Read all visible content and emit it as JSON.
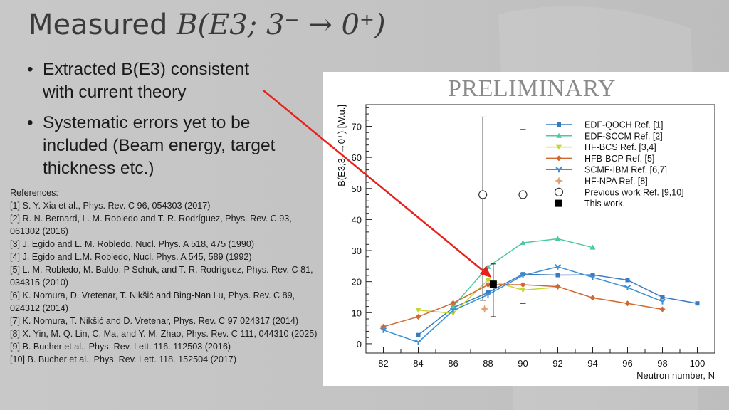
{
  "slide": {
    "title_prefix": "Measured ",
    "title_math": "B(E3; 3⁻ → 0⁺)",
    "bullets": [
      "Extracted B(E3) consistent with current theory",
      "Systematic errors yet to be included (Beam energy, target thickness etc.)"
    ],
    "bullet_glyph": "•",
    "references_heading": "References:",
    "references": [
      "[1]  S. Y. Xia et al., Phys. Rev. C 96, 054303 (2017)",
      "[2] R. N. Bernard, L. M. Robledo and T. R. Rodríguez, Phys. Rev. C 93, 061302 (2016)",
      "[3] J. Egido and L. M. Robledo, Nucl. Phys. A 518, 475 (1990)",
      "[4] J. Egido and L.M. Robledo, Nucl. Phys. A 545, 589 (1992)",
      "[5] L. M. Robledo, M. Baldo, P Schuk, and T. R. Rodríguez,  Phys. Rev. C 81, 034315 (2010)",
      "[6] K. Nomura, D. Vretenar, T. Nikšić and Bing-Nan Lu, Phys. Rev. C 89, 024312 (2014)",
      "[7] K. Nomura, T. Nikšić  and D. Vretenar, Phys. Rev. C 97 024317 (2014)",
      "[8] X. Yin, M. Q. Lin, C. Ma, and Y. M. Zhao, Phys. Rev. C 111, 044310 (2025)",
      "[9] B. Bucher et al., Phys. Rev. Lett. 116. 112503 (2016)",
      "[10] B. Bucher et al., Phys. Rev. Lett. 118. 152504 (2017)"
    ],
    "arrow_color": "#e8221a"
  },
  "chart_data": {
    "type": "line",
    "watermark": "PRELIMINARY",
    "xlabel": "Neutron number, N",
    "ylabel": "B(E3;3⁻→0⁺) [W.u.]",
    "xlim": [
      81,
      101
    ],
    "ylim": [
      -3,
      77
    ],
    "xticks": [
      82,
      84,
      86,
      88,
      90,
      92,
      94,
      96,
      98,
      100
    ],
    "yticks": [
      0,
      10,
      20,
      30,
      40,
      50,
      60,
      70
    ],
    "legend_position": "top-right",
    "series": [
      {
        "name": "EDF-QOCH Ref. [1]",
        "color": "#3a7abf",
        "marker": "square",
        "line": true,
        "x": [
          84,
          86,
          88,
          90,
          92,
          94,
          96,
          98,
          100
        ],
        "y": [
          2.8,
          11.6,
          16.5,
          22.4,
          22.1,
          22.2,
          20.5,
          15.0,
          13.0
        ]
      },
      {
        "name": "EDF-SCCM Ref. [2]",
        "color": "#4cc9a4",
        "marker": "triangle",
        "line": true,
        "x": [
          86,
          88,
          90,
          92,
          94
        ],
        "y": [
          12.0,
          24.8,
          32.5,
          33.8,
          31.0
        ]
      },
      {
        "name": "HF-BCS Ref. [3,4]",
        "color": "#c5d63a",
        "marker": "triangle-down",
        "line": true,
        "x": [
          84,
          86,
          88,
          90,
          92
        ],
        "y": [
          10.8,
          9.8,
          20.5,
          17.3,
          18.2
        ]
      },
      {
        "name": "HFB-BCP Ref. [5]",
        "color": "#d2682f",
        "marker": "diamond",
        "line": true,
        "x": [
          82,
          84,
          86,
          88,
          90,
          92,
          94,
          96,
          98
        ],
        "y": [
          5.5,
          8.7,
          13.1,
          19.0,
          19.0,
          18.4,
          14.8,
          13.0,
          11.1
        ]
      },
      {
        "name": "SCMF-IBM Ref. [6,7]",
        "color": "#3a8fd6",
        "marker": "tri",
        "line": true,
        "x": [
          82,
          84,
          86,
          88,
          90,
          92,
          94,
          96,
          98
        ],
        "y": [
          4.4,
          0.5,
          10.7,
          15.8,
          22.0,
          24.8,
          21.4,
          18.1,
          13.6
        ]
      },
      {
        "name": "HF-NPA Ref. [8]",
        "color": "#e0a070",
        "marker": "star",
        "line": false,
        "x": [
          87.8
        ],
        "y": [
          11.2
        ]
      },
      {
        "name": "Previous work Ref. [9,10]",
        "color": "#333333",
        "marker": "circle",
        "line": false,
        "x": [
          87.7,
          90
        ],
        "y": [
          48,
          48
        ],
        "err_low": [
          34,
          35
        ],
        "err_high": [
          25,
          21
        ]
      },
      {
        "name": "This work.",
        "color": "#000000",
        "marker": "filled-square",
        "line": false,
        "x": [
          88.3
        ],
        "y": [
          19.2
        ],
        "err_low": [
          10.5
        ],
        "err_high": [
          6.5
        ]
      }
    ]
  }
}
